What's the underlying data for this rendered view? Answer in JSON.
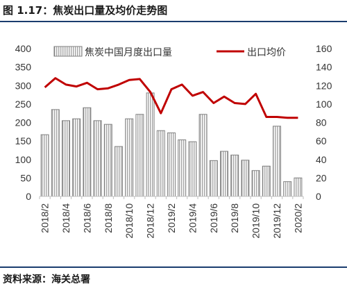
{
  "figure": {
    "title": "图 1.17：焦炭出口量及均价走势图",
    "source": "资料来源：海关总署"
  },
  "chart_data": {
    "type": "bar+line",
    "categories": [
      "2018/2",
      "2018/3",
      "2018/4",
      "2018/5",
      "2018/6",
      "2018/7",
      "2018/8",
      "2018/9",
      "2018/10",
      "2018/11",
      "2018/12",
      "2019/1",
      "2019/2",
      "2019/3",
      "2019/4",
      "2019/5",
      "2019/6",
      "2019/7",
      "2019/8",
      "2019/9",
      "2019/10",
      "2019/11",
      "2019/12",
      "2020/1",
      "2020/2"
    ],
    "x_tick_labels": [
      "2018/2",
      "2018/4",
      "2018/6",
      "2018/8",
      "2018/10",
      "2018/12",
      "2019/2",
      "2019/4",
      "2019/6",
      "2019/8",
      "2019/10",
      "2019/12",
      "2020/2"
    ],
    "series": [
      {
        "name": "焦炭中国月度出口量",
        "type": "bar",
        "axis": "left",
        "values": [
          167,
          235,
          205,
          210,
          240,
          205,
          195,
          135,
          210,
          222,
          280,
          178,
          172,
          153,
          148,
          222,
          97,
          122,
          112,
          98,
          70,
          82,
          190,
          40,
          50
        ]
      },
      {
        "name": "出口均价",
        "type": "line",
        "axis": "right",
        "color": "#c00000",
        "values": [
          118,
          128,
          121,
          119,
          123,
          116,
          117,
          121,
          126,
          127,
          113,
          90,
          116,
          121,
          109,
          113,
          101,
          108,
          101,
          100,
          111,
          86,
          86,
          85,
          85
        ]
      }
    ],
    "y_left": {
      "min": 0,
      "max": 400,
      "ticks": [
        0,
        50,
        100,
        150,
        200,
        250,
        300,
        350,
        400
      ]
    },
    "y_right": {
      "min": 0,
      "max": 160,
      "ticks": [
        0,
        20,
        40,
        60,
        80,
        100,
        120,
        140,
        160
      ]
    },
    "legend": "top",
    "grid": false,
    "colors": {
      "bar_hatch": "#7f7f7f",
      "line": "#c00000",
      "rule": "#1a3c6e"
    }
  }
}
